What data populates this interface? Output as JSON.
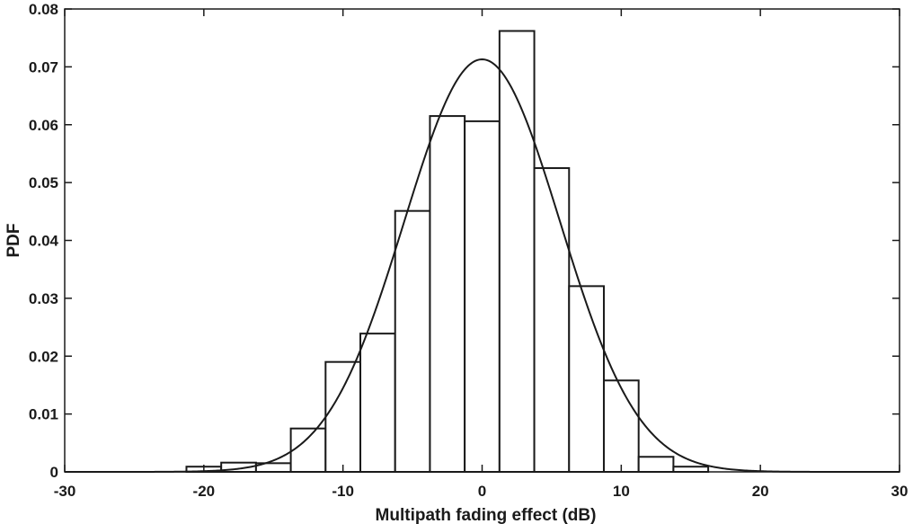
{
  "chart_data": {
    "type": "bar",
    "subtype": "histogram-with-fitted-curve",
    "title": "",
    "xlabel": "Multipath fading effect (dB)",
    "ylabel": "PDF",
    "xlim": [
      -30,
      30
    ],
    "ylim": [
      0,
      0.08
    ],
    "xticks": [
      -30,
      -20,
      -10,
      0,
      10,
      20,
      30
    ],
    "yticks": [
      0,
      0.01,
      0.02,
      0.03,
      0.04,
      0.05,
      0.06,
      0.07,
      0.08
    ],
    "xtick_labels": [
      "-30",
      "-20",
      "-10",
      "0",
      "10",
      "20",
      "30"
    ],
    "ytick_labels": [
      "0",
      "0.01",
      "0.02",
      "0.03",
      "0.04",
      "0.05",
      "0.06",
      "0.07",
      "0.08"
    ],
    "grid": false,
    "bins": {
      "edges": [
        -21.25,
        -18.75,
        -16.25,
        -13.75,
        -11.25,
        -8.75,
        -6.25,
        -3.75,
        -1.25,
        1.25,
        3.75,
        6.25,
        8.75,
        11.25,
        13.75,
        16.25
      ],
      "values": [
        0.0009,
        0.0016,
        0.0015,
        0.0075,
        0.019,
        0.0239,
        0.0451,
        0.0615,
        0.0606,
        0.0762,
        0.0525,
        0.0321,
        0.0158,
        0.0026,
        0.0009
      ]
    },
    "fit_curve": {
      "distribution": "normal",
      "mean": 0,
      "std": 5.6,
      "peak": 0.0713
    },
    "colors": {
      "bar_fill": "#ffffff",
      "bar_edge": "#1a1a1a",
      "curve": "#1a1a1a",
      "axis": "#1a1a1a"
    }
  }
}
